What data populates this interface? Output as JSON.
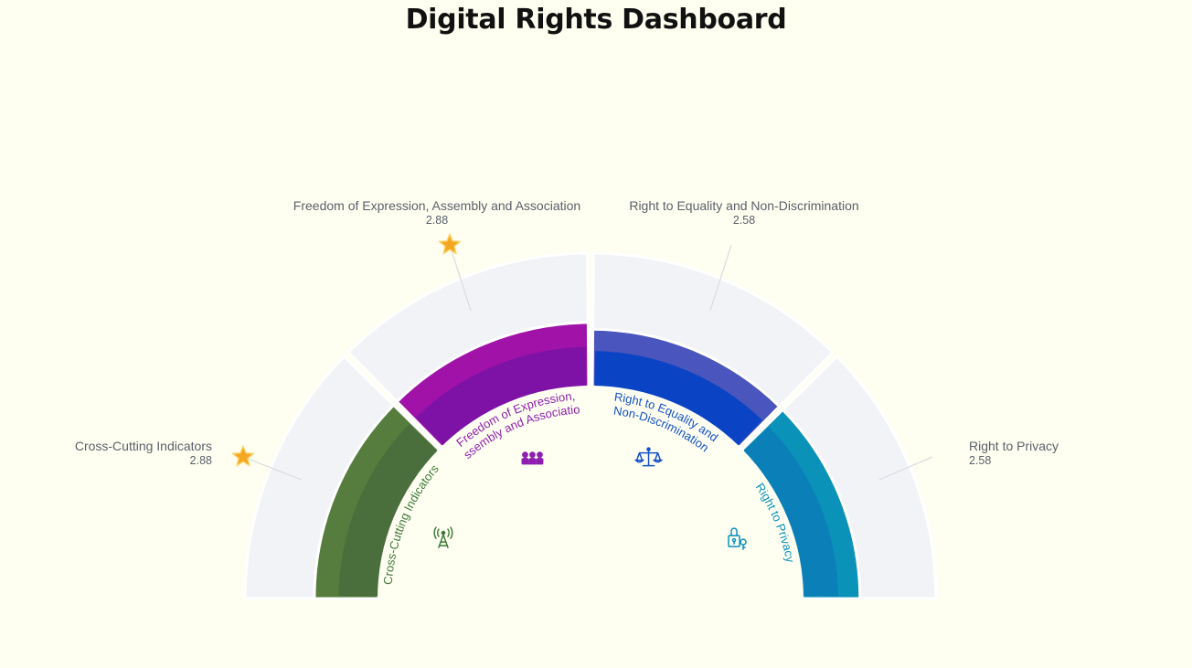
{
  "title": "Digital Rights Dashboard",
  "chart_data": {
    "type": "radial-bar",
    "title": "Digital Rights Dashboard",
    "scale_max": 6,
    "categories": [
      {
        "name": "Cross-Cutting Indicators",
        "inner_label_lines": [
          "Cross-Cutting Indicators"
        ],
        "value": 2.88,
        "value_text": "2.88",
        "color_outer": "#567d3d",
        "color_inner": "#4a6e3c",
        "label_color": "#3f7a3a",
        "icon": "antenna-tower-icon",
        "starred": true
      },
      {
        "name": "Freedom of Expression, Assembly and Association",
        "inner_label_lines": [
          "Freedom of Expression,",
          "Assembly and Association"
        ],
        "value": 2.88,
        "value_text": "2.88",
        "color_outer": "#a012a8",
        "color_inner": "#7f12a6",
        "label_color": "#8f1fb0",
        "icon": "people-group-icon",
        "starred": true
      },
      {
        "name": "Right to Equality and Non-Discrimination",
        "inner_label_lines": [
          "Right to Equality and",
          "Non-Discrimination"
        ],
        "value": 2.58,
        "value_text": "2.58",
        "color_outer": "#4a55bd",
        "color_inner": "#0a44c4",
        "label_color": "#1450c8",
        "icon": "scales-icon",
        "starred": false
      },
      {
        "name": "Right to Privacy",
        "inner_label_lines": [
          "Right to Privacy"
        ],
        "value": 2.58,
        "value_text": "2.58",
        "color_outer": "#0a92b8",
        "color_inner": "#0a7fb8",
        "label_color": "#0a8fc0",
        "icon": "lock-key-icon",
        "starred": false
      }
    ],
    "background_color": "#f2f3f7",
    "star_color": "#f5a623",
    "legend": "none"
  }
}
